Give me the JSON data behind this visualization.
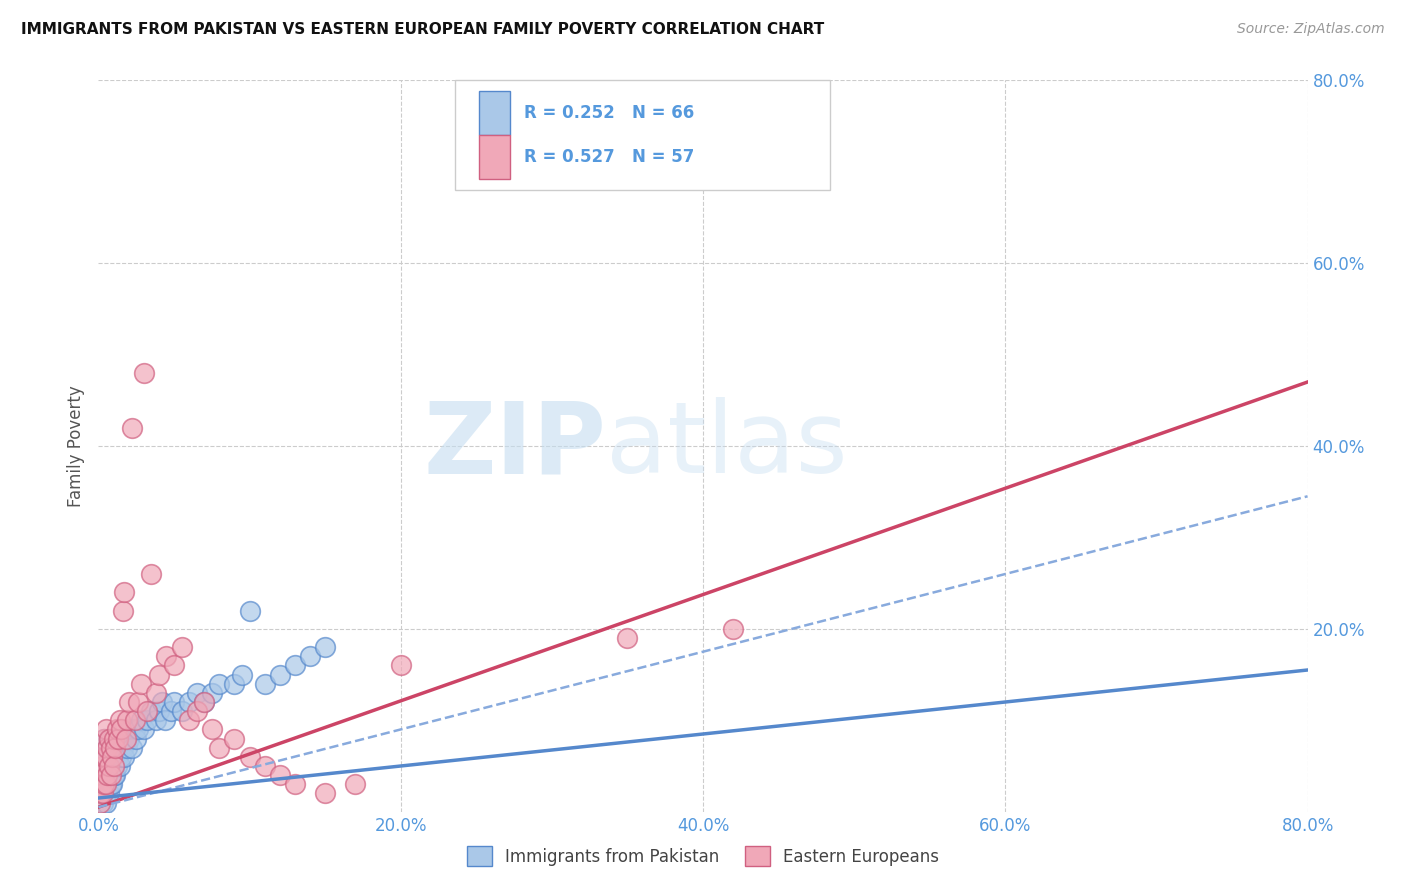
{
  "title": "IMMIGRANTS FROM PAKISTAN VS EASTERN EUROPEAN FAMILY POVERTY CORRELATION CHART",
  "source": "Source: ZipAtlas.com",
  "ylabel": "Family Poverty",
  "legend_label1": "Immigrants from Pakistan",
  "legend_label2": "Eastern Europeans",
  "legend_r1": "R = 0.252",
  "legend_n1": "N = 66",
  "legend_r2": "R = 0.527",
  "legend_n2": "N = 57",
  "color_pakistan_fill": "#aac8e8",
  "color_pakistan_edge": "#5588cc",
  "color_eastern_fill": "#f0a8b8",
  "color_eastern_edge": "#d06080",
  "color_pakistan_line_solid": "#5588cc",
  "color_pakistan_line_dash": "#88aadd",
  "color_eastern_line": "#cc4466",
  "color_tick": "#5599dd",
  "xlim": [
    0.0,
    0.8
  ],
  "ylim": [
    0.0,
    0.8
  ],
  "pakistan_scatter_x": [
    0.001,
    0.002,
    0.002,
    0.003,
    0.003,
    0.003,
    0.004,
    0.004,
    0.004,
    0.004,
    0.005,
    0.005,
    0.005,
    0.006,
    0.006,
    0.006,
    0.007,
    0.007,
    0.007,
    0.008,
    0.008,
    0.008,
    0.009,
    0.009,
    0.01,
    0.01,
    0.011,
    0.011,
    0.012,
    0.013,
    0.014,
    0.015,
    0.016,
    0.017,
    0.018,
    0.019,
    0.02,
    0.021,
    0.022,
    0.024,
    0.025,
    0.026,
    0.028,
    0.03,
    0.032,
    0.035,
    0.038,
    0.04,
    0.042,
    0.044,
    0.048,
    0.05,
    0.055,
    0.06,
    0.065,
    0.07,
    0.075,
    0.08,
    0.09,
    0.095,
    0.1,
    0.11,
    0.12,
    0.13,
    0.14,
    0.15
  ],
  "pakistan_scatter_y": [
    0.02,
    0.03,
    0.05,
    0.01,
    0.03,
    0.06,
    0.02,
    0.04,
    0.06,
    0.08,
    0.01,
    0.03,
    0.05,
    0.02,
    0.04,
    0.07,
    0.02,
    0.04,
    0.08,
    0.03,
    0.05,
    0.08,
    0.03,
    0.06,
    0.04,
    0.07,
    0.04,
    0.07,
    0.05,
    0.06,
    0.05,
    0.06,
    0.07,
    0.06,
    0.08,
    0.07,
    0.08,
    0.09,
    0.07,
    0.09,
    0.08,
    0.09,
    0.1,
    0.09,
    0.1,
    0.11,
    0.1,
    0.11,
    0.12,
    0.1,
    0.11,
    0.12,
    0.11,
    0.12,
    0.13,
    0.12,
    0.13,
    0.14,
    0.14,
    0.15,
    0.22,
    0.14,
    0.15,
    0.16,
    0.17,
    0.18
  ],
  "eastern_scatter_x": [
    0.001,
    0.002,
    0.002,
    0.003,
    0.003,
    0.004,
    0.004,
    0.004,
    0.005,
    0.005,
    0.005,
    0.006,
    0.006,
    0.007,
    0.007,
    0.008,
    0.008,
    0.009,
    0.01,
    0.01,
    0.011,
    0.012,
    0.013,
    0.014,
    0.015,
    0.016,
    0.017,
    0.018,
    0.019,
    0.02,
    0.022,
    0.024,
    0.026,
    0.028,
    0.03,
    0.032,
    0.035,
    0.038,
    0.04,
    0.045,
    0.05,
    0.055,
    0.06,
    0.065,
    0.07,
    0.075,
    0.08,
    0.09,
    0.1,
    0.11,
    0.12,
    0.13,
    0.15,
    0.17,
    0.2,
    0.35,
    0.42
  ],
  "eastern_scatter_y": [
    0.01,
    0.02,
    0.04,
    0.02,
    0.05,
    0.03,
    0.06,
    0.08,
    0.03,
    0.06,
    0.09,
    0.04,
    0.07,
    0.05,
    0.08,
    0.04,
    0.07,
    0.06,
    0.05,
    0.08,
    0.07,
    0.09,
    0.08,
    0.1,
    0.09,
    0.22,
    0.24,
    0.08,
    0.1,
    0.12,
    0.42,
    0.1,
    0.12,
    0.14,
    0.48,
    0.11,
    0.26,
    0.13,
    0.15,
    0.17,
    0.16,
    0.18,
    0.1,
    0.11,
    0.12,
    0.09,
    0.07,
    0.08,
    0.06,
    0.05,
    0.04,
    0.03,
    0.02,
    0.03,
    0.16,
    0.19,
    0.2
  ],
  "pakistan_line_x": [
    0.0,
    0.8
  ],
  "pakistan_line_y": [
    0.015,
    0.155
  ],
  "pakistan_dash_line_x": [
    0.0,
    0.8
  ],
  "pakistan_dash_line_y": [
    0.005,
    0.345
  ],
  "eastern_line_x": [
    0.0,
    0.8
  ],
  "eastern_line_y": [
    0.005,
    0.47
  ],
  "ytick_labels_right": [
    "80.0%",
    "60.0%",
    "40.0%",
    "20.0%"
  ],
  "ytick_vals_right": [
    0.8,
    0.6,
    0.4,
    0.2
  ],
  "xtick_labels": [
    "0.0%",
    "20.0%",
    "40.0%",
    "60.0%",
    "80.0%"
  ],
  "xtick_vals": [
    0.0,
    0.2,
    0.4,
    0.6,
    0.8
  ]
}
